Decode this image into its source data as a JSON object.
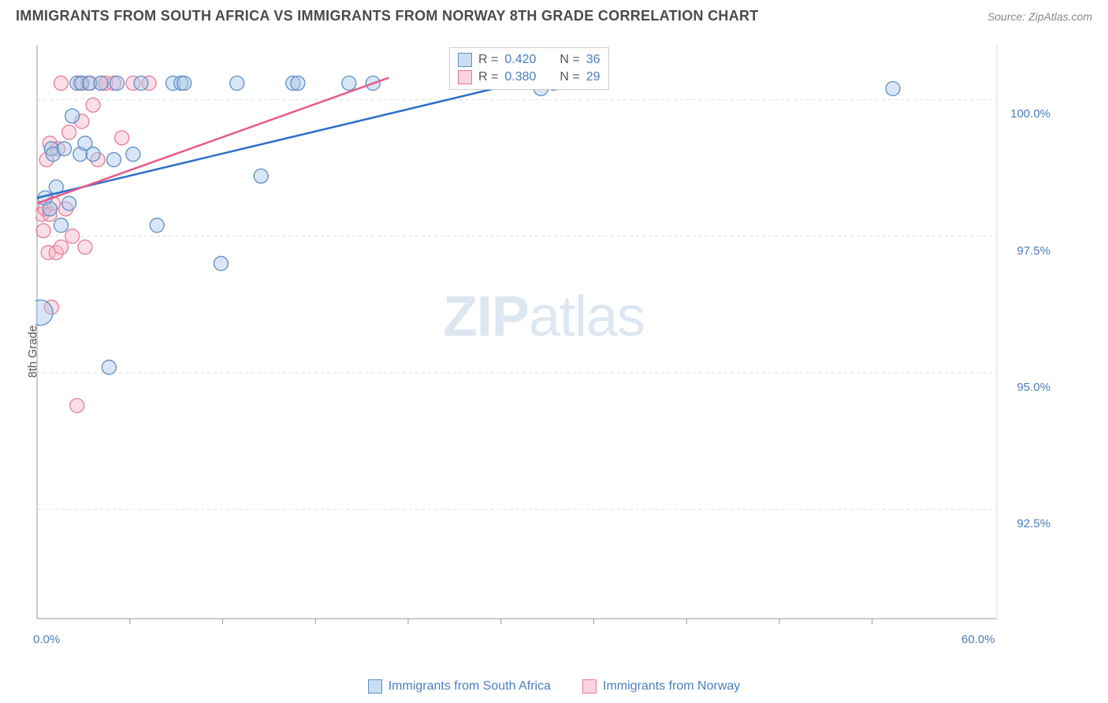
{
  "header": {
    "title": "IMMIGRANTS FROM SOUTH AFRICA VS IMMIGRANTS FROM NORWAY 8TH GRADE CORRELATION CHART",
    "source_prefix": "Source: ",
    "source_name": "ZipAtlas.com"
  },
  "chart": {
    "type": "scatter",
    "y_axis_label": "8th Grade",
    "x_range": [
      0,
      60
    ],
    "y_range": [
      90.5,
      101
    ],
    "x_ticks": [
      0,
      60
    ],
    "x_tick_labels": [
      "0.0%",
      "60.0%"
    ],
    "x_minor_ticks": [
      5.8,
      11.6,
      17.4,
      23.2,
      29.0,
      34.8,
      40.6,
      46.4,
      52.2
    ],
    "y_ticks": [
      92.5,
      95.0,
      97.5,
      100.0
    ],
    "y_tick_labels": [
      "92.5%",
      "95.0%",
      "97.5%",
      "100.0%"
    ],
    "grid_color": "#dddddd",
    "axis_color": "#999999",
    "background_color": "#ffffff",
    "watermark": {
      "bold": "ZIP",
      "light": "atlas"
    },
    "series": [
      {
        "name": "Immigrants from South Africa",
        "color_fill": "#a8c8e8",
        "color_stroke": "#5b8fc7",
        "fill_opacity": 0.45,
        "marker_radius": 9,
        "regression": {
          "x1": 0,
          "y1": 98.2,
          "x2": 30,
          "y2": 100.3,
          "color": "#2e6fc9",
          "width": 2.5
        },
        "stats": {
          "R": "0.420",
          "N": "36"
        },
        "points": [
          {
            "x": 0.2,
            "y": 96.1,
            "r": 16
          },
          {
            "x": 0.5,
            "y": 98.2,
            "r": 9
          },
          {
            "x": 0.8,
            "y": 98.0,
            "r": 9
          },
          {
            "x": 0.9,
            "y": 99.1,
            "r": 9
          },
          {
            "x": 1.0,
            "y": 99.0,
            "r": 9
          },
          {
            "x": 1.2,
            "y": 98.4,
            "r": 9
          },
          {
            "x": 1.5,
            "y": 97.7,
            "r": 9
          },
          {
            "x": 1.7,
            "y": 99.1,
            "r": 9
          },
          {
            "x": 2.0,
            "y": 98.1,
            "r": 9
          },
          {
            "x": 2.2,
            "y": 99.7,
            "r": 9
          },
          {
            "x": 2.5,
            "y": 100.3,
            "r": 9
          },
          {
            "x": 2.7,
            "y": 99.0,
            "r": 9
          },
          {
            "x": 2.8,
            "y": 100.3,
            "r": 9
          },
          {
            "x": 3.0,
            "y": 99.2,
            "r": 9
          },
          {
            "x": 3.3,
            "y": 100.3,
            "r": 9
          },
          {
            "x": 3.5,
            "y": 99.0,
            "r": 9
          },
          {
            "x": 4.0,
            "y": 100.3,
            "r": 9
          },
          {
            "x": 4.5,
            "y": 95.1,
            "r": 9
          },
          {
            "x": 4.8,
            "y": 98.9,
            "r": 9
          },
          {
            "x": 5.0,
            "y": 100.3,
            "r": 9
          },
          {
            "x": 6.0,
            "y": 99.0,
            "r": 9
          },
          {
            "x": 6.5,
            "y": 100.3,
            "r": 9
          },
          {
            "x": 7.5,
            "y": 97.7,
            "r": 9
          },
          {
            "x": 8.5,
            "y": 100.3,
            "r": 9
          },
          {
            "x": 9.0,
            "y": 100.3,
            "r": 9
          },
          {
            "x": 9.2,
            "y": 100.3,
            "r": 9
          },
          {
            "x": 11.5,
            "y": 97.0,
            "r": 9
          },
          {
            "x": 12.5,
            "y": 100.3,
            "r": 9
          },
          {
            "x": 14.0,
            "y": 98.6,
            "r": 9
          },
          {
            "x": 16.0,
            "y": 100.3,
            "r": 9
          },
          {
            "x": 16.3,
            "y": 100.3,
            "r": 9
          },
          {
            "x": 19.5,
            "y": 100.3,
            "r": 9
          },
          {
            "x": 21.0,
            "y": 100.3,
            "r": 9
          },
          {
            "x": 31.5,
            "y": 100.2,
            "r": 9
          },
          {
            "x": 32.3,
            "y": 100.3,
            "r": 9
          },
          {
            "x": 53.5,
            "y": 100.2,
            "r": 9
          }
        ]
      },
      {
        "name": "Immigrants from Norway",
        "color_fill": "#f5b8c8",
        "color_stroke": "#e87a9a",
        "fill_opacity": 0.45,
        "marker_radius": 9,
        "regression": {
          "x1": 0,
          "y1": 98.1,
          "x2": 22,
          "y2": 100.4,
          "color": "#e85a8a",
          "width": 2.5
        },
        "stats": {
          "R": "0.380",
          "N": "29"
        },
        "points": [
          {
            "x": 0.3,
            "y": 97.9,
            "r": 9
          },
          {
            "x": 0.4,
            "y": 97.6,
            "r": 9
          },
          {
            "x": 0.5,
            "y": 98.0,
            "r": 9
          },
          {
            "x": 0.6,
            "y": 98.9,
            "r": 9
          },
          {
            "x": 0.7,
            "y": 97.2,
            "r": 9
          },
          {
            "x": 0.8,
            "y": 97.9,
            "r": 9
          },
          {
            "x": 0.8,
            "y": 99.2,
            "r": 9
          },
          {
            "x": 0.9,
            "y": 96.2,
            "r": 9
          },
          {
            "x": 1.0,
            "y": 98.1,
            "r": 9
          },
          {
            "x": 1.2,
            "y": 97.2,
            "r": 9
          },
          {
            "x": 1.3,
            "y": 99.1,
            "r": 9
          },
          {
            "x": 1.5,
            "y": 97.3,
            "r": 9
          },
          {
            "x": 1.5,
            "y": 100.3,
            "r": 9
          },
          {
            "x": 1.8,
            "y": 98.0,
            "r": 9
          },
          {
            "x": 2.0,
            "y": 99.4,
            "r": 9
          },
          {
            "x": 2.2,
            "y": 97.5,
            "r": 9
          },
          {
            "x": 2.5,
            "y": 94.4,
            "r": 9
          },
          {
            "x": 2.7,
            "y": 100.3,
            "r": 9
          },
          {
            "x": 2.8,
            "y": 99.6,
            "r": 9
          },
          {
            "x": 3.0,
            "y": 97.3,
            "r": 9
          },
          {
            "x": 3.2,
            "y": 100.3,
            "r": 9
          },
          {
            "x": 3.5,
            "y": 99.9,
            "r": 9
          },
          {
            "x": 3.8,
            "y": 98.9,
            "r": 9
          },
          {
            "x": 4.0,
            "y": 100.3,
            "r": 9
          },
          {
            "x": 4.3,
            "y": 100.3,
            "r": 9
          },
          {
            "x": 4.8,
            "y": 100.3,
            "r": 9
          },
          {
            "x": 5.3,
            "y": 99.3,
            "r": 9
          },
          {
            "x": 6.0,
            "y": 100.3,
            "r": 9
          },
          {
            "x": 7.0,
            "y": 100.3,
            "r": 9
          }
        ]
      }
    ],
    "stats_legend": {
      "R_label": "R = ",
      "N_label": "N = "
    }
  }
}
